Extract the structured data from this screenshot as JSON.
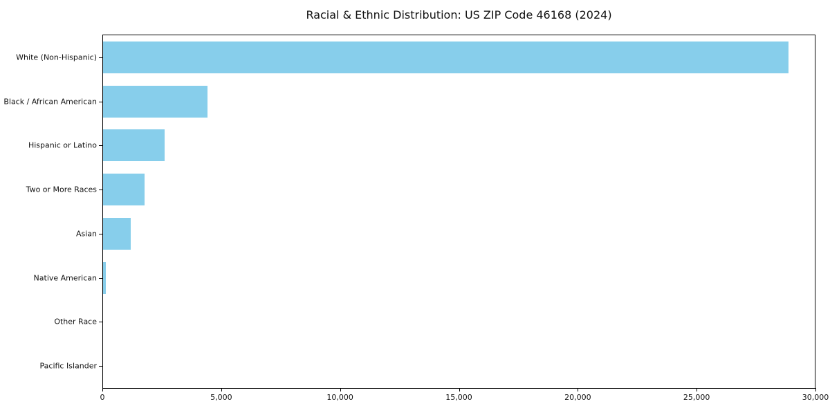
{
  "chart_data": {
    "type": "bar",
    "orientation": "horizontal",
    "title": "Racial & Ethnic Distribution: US ZIP Code 46168 (2024)",
    "categories": [
      "White (Non-Hispanic)",
      "Black / African American",
      "Hispanic or Latino",
      "Two or More Races",
      "Asian",
      "Native American",
      "Other Race",
      "Pacific Islander"
    ],
    "values": [
      28900,
      4400,
      2600,
      1740,
      1180,
      110,
      0,
      0
    ],
    "bar_color": "#87CEEB",
    "xlabel": "",
    "ylabel": "",
    "xlim": [
      0,
      30000
    ],
    "x_ticks": [
      0,
      5000,
      10000,
      15000,
      20000,
      25000,
      30000
    ],
    "x_tick_labels": [
      "0",
      "5,000",
      "10,000",
      "15,000",
      "20,000",
      "25,000",
      "30,000"
    ],
    "grid": false,
    "legend_position": "none",
    "background_color": "#ffffff",
    "text_color": "#111111",
    "spines": "all-black-box"
  }
}
